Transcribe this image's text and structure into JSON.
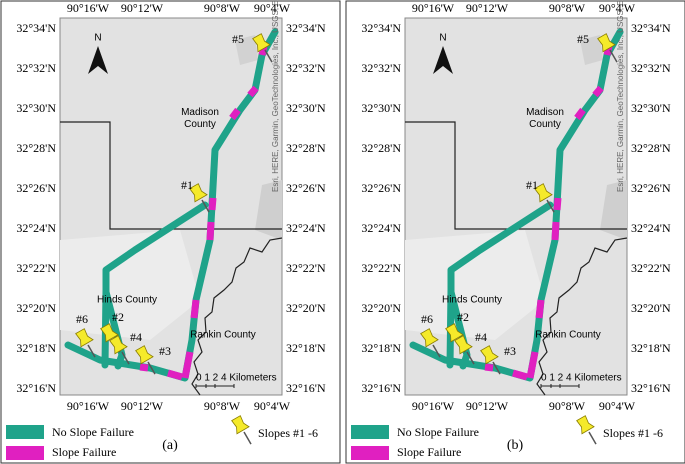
{
  "map": {
    "lon_labels": [
      "90°16'W",
      "90°12'W",
      "90°8'W",
      "90°4'W"
    ],
    "lat_labels": [
      "32°34'N",
      "32°32'N",
      "32°30'N",
      "32°28'N",
      "32°26'N",
      "32°24'N",
      "32°22'N",
      "32°20'N",
      "32°18'N",
      "32°16'N"
    ],
    "north": "N",
    "counties": [
      "Madison County",
      "Hinds County",
      "Rankin County"
    ],
    "slopes": [
      "#1",
      "#2",
      "#3",
      "#4",
      "#5",
      "#6"
    ],
    "scale": "0 1 2 4 Kilometers",
    "attribution": "Esri, HERE, Garmin, GeoTechnologies, Inc., USGS, EPA"
  },
  "legend": {
    "no_failure": "No Slope Failure",
    "failure": "Slope Failure",
    "slopes": "Slopes #1 -6"
  },
  "panels": [
    {
      "label": "(a)"
    },
    {
      "label": "(b)"
    }
  ]
}
